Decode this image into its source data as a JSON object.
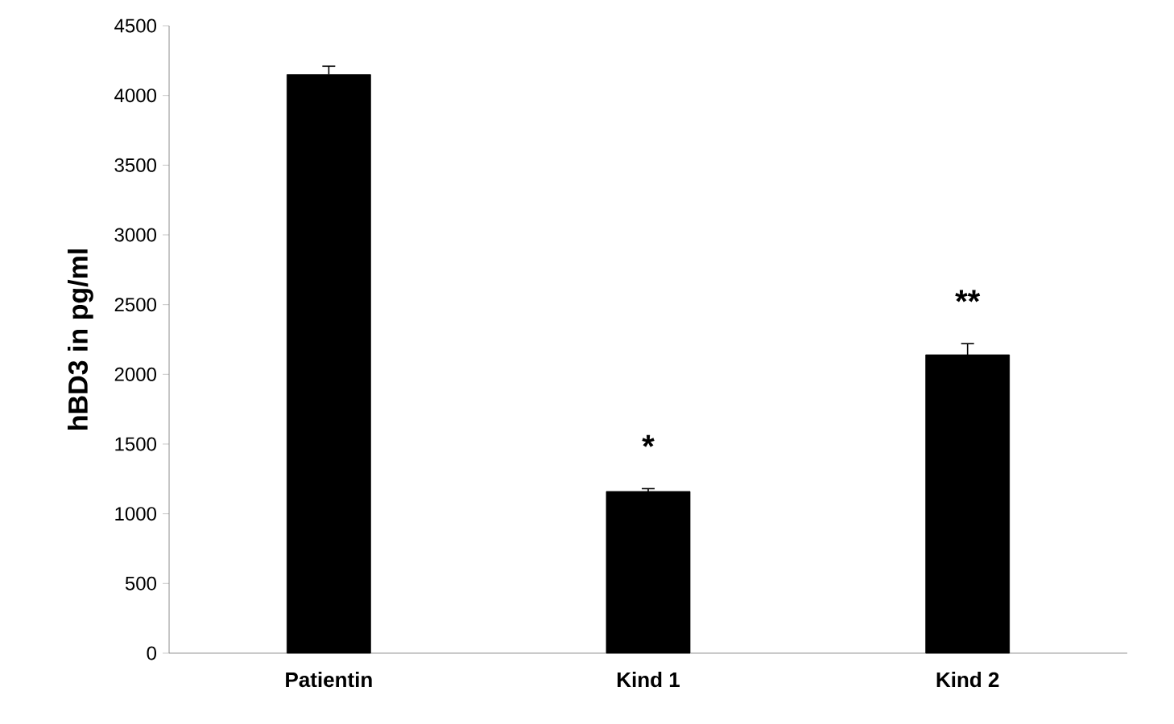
{
  "chart_data": {
    "type": "bar",
    "ylabel": "hBD3 in pg/ml",
    "categories": [
      "Patientin",
      "Kind 1",
      "Kind 2"
    ],
    "values": [
      4150,
      1160,
      2140
    ],
    "errors": [
      60,
      20,
      80
    ],
    "color": "#000000",
    "ylim": [
      0,
      4500
    ],
    "yticks": [
      0,
      500,
      1000,
      1500,
      2000,
      2500,
      3000,
      3500,
      4000,
      4500
    ],
    "grid": false,
    "annotations": [
      "*",
      "**"
    ]
  }
}
